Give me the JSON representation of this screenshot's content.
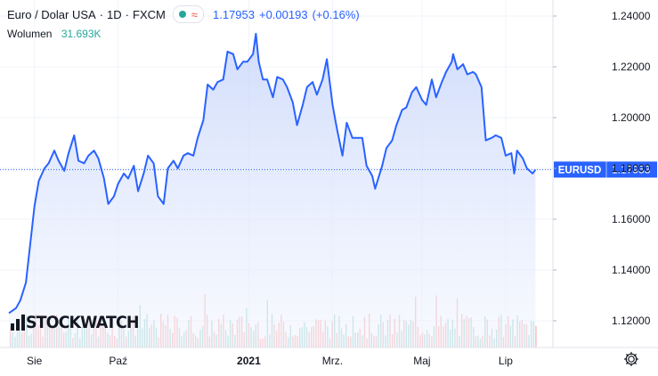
{
  "legend": {
    "symbol": "Euro / Dolar USA",
    "interval": "1D",
    "exchange": "FXCM",
    "price": "1.17953",
    "change": "+0.00193",
    "change_pct": "(+0.16%)",
    "volume_label": "Wolumen",
    "volume_value": "31.693K"
  },
  "price_tag": {
    "symbol": "EURUSD",
    "value": "1.17953"
  },
  "watermark": "STOCKWATCH",
  "colors": {
    "line": "#2962ff",
    "area_top": "#c9d7fb",
    "area_bottom": "#f2f5fe",
    "up": "#26a69a",
    "down": "#ef5350",
    "text": "#131722"
  },
  "chart_data": {
    "type": "area",
    "ylim": [
      1.11,
      1.245
    ],
    "yticks": [
      "1.24000",
      "1.22000",
      "1.20000",
      "1.18000",
      "1.16000",
      "1.14000",
      "1.12000"
    ],
    "ytick_values": [
      1.24,
      1.22,
      1.2,
      1.18,
      1.16,
      1.14,
      1.12
    ],
    "xlim": [
      "2020-07-16",
      "2021-07-23"
    ],
    "xticks": [
      {
        "label": "Sie",
        "date": "2020-08-03"
      },
      {
        "label": "Paź",
        "date": "2020-10-01"
      },
      {
        "label": "2021",
        "date": "2021-01-01"
      },
      {
        "label": "Mrz.",
        "date": "2021-03-01"
      },
      {
        "label": "Maj",
        "date": "2021-05-03"
      },
      {
        "label": "Lip",
        "date": "2021-07-01"
      }
    ],
    "last_price": 1.17953,
    "series": [
      {
        "values": [
          [
            "2020-07-16",
            1.123
          ],
          [
            "2020-07-21",
            1.125
          ],
          [
            "2020-07-24",
            1.128
          ],
          [
            "2020-07-28",
            1.135
          ],
          [
            "2020-07-31",
            1.15
          ],
          [
            "2020-08-03",
            1.165
          ],
          [
            "2020-08-06",
            1.175
          ],
          [
            "2020-08-10",
            1.18
          ],
          [
            "2020-08-13",
            1.182
          ],
          [
            "2020-08-17",
            1.187
          ],
          [
            "2020-08-20",
            1.183
          ],
          [
            "2020-08-24",
            1.179
          ],
          [
            "2020-08-27",
            1.186
          ],
          [
            "2020-08-31",
            1.193
          ],
          [
            "2020-09-03",
            1.183
          ],
          [
            "2020-09-07",
            1.182
          ],
          [
            "2020-09-10",
            1.185
          ],
          [
            "2020-09-14",
            1.187
          ],
          [
            "2020-09-17",
            1.184
          ],
          [
            "2020-09-21",
            1.176
          ],
          [
            "2020-09-24",
            1.166
          ],
          [
            "2020-09-28",
            1.169
          ],
          [
            "2020-10-01",
            1.174
          ],
          [
            "2020-10-05",
            1.178
          ],
          [
            "2020-10-08",
            1.176
          ],
          [
            "2020-10-12",
            1.181
          ],
          [
            "2020-10-15",
            1.171
          ],
          [
            "2020-10-19",
            1.178
          ],
          [
            "2020-10-22",
            1.185
          ],
          [
            "2020-10-26",
            1.182
          ],
          [
            "2020-10-29",
            1.169
          ],
          [
            "2020-11-02",
            1.166
          ],
          [
            "2020-11-05",
            1.18
          ],
          [
            "2020-11-09",
            1.183
          ],
          [
            "2020-11-12",
            1.18
          ],
          [
            "2020-11-16",
            1.185
          ],
          [
            "2020-11-19",
            1.186
          ],
          [
            "2020-11-23",
            1.185
          ],
          [
            "2020-11-26",
            1.192
          ],
          [
            "2020-11-30",
            1.199
          ],
          [
            "2020-12-03",
            1.213
          ],
          [
            "2020-12-07",
            1.211
          ],
          [
            "2020-12-10",
            1.214
          ],
          [
            "2020-12-14",
            1.215
          ],
          [
            "2020-12-17",
            1.226
          ],
          [
            "2020-12-21",
            1.225
          ],
          [
            "2020-12-24",
            1.219
          ],
          [
            "2020-12-28",
            1.222
          ],
          [
            "2020-12-31",
            1.222
          ],
          [
            "2021-01-04",
            1.225
          ],
          [
            "2021-01-06",
            1.233
          ],
          [
            "2021-01-08",
            1.222
          ],
          [
            "2021-01-11",
            1.215
          ],
          [
            "2021-01-14",
            1.215
          ],
          [
            "2021-01-18",
            1.208
          ],
          [
            "2021-01-21",
            1.216
          ],
          [
            "2021-01-25",
            1.215
          ],
          [
            "2021-01-28",
            1.212
          ],
          [
            "2021-02-01",
            1.206
          ],
          [
            "2021-02-04",
            1.197
          ],
          [
            "2021-02-08",
            1.205
          ],
          [
            "2021-02-11",
            1.212
          ],
          [
            "2021-02-15",
            1.214
          ],
          [
            "2021-02-18",
            1.209
          ],
          [
            "2021-02-22",
            1.215
          ],
          [
            "2021-02-25",
            1.223
          ],
          [
            "2021-03-01",
            1.205
          ],
          [
            "2021-03-04",
            1.196
          ],
          [
            "2021-03-08",
            1.185
          ],
          [
            "2021-03-11",
            1.198
          ],
          [
            "2021-03-15",
            1.192
          ],
          [
            "2021-03-18",
            1.192
          ],
          [
            "2021-03-22",
            1.192
          ],
          [
            "2021-03-25",
            1.181
          ],
          [
            "2021-03-29",
            1.177
          ],
          [
            "2021-03-31",
            1.172
          ],
          [
            "2021-04-05",
            1.181
          ],
          [
            "2021-04-08",
            1.188
          ],
          [
            "2021-04-12",
            1.191
          ],
          [
            "2021-04-15",
            1.197
          ],
          [
            "2021-04-19",
            1.203
          ],
          [
            "2021-04-22",
            1.204
          ],
          [
            "2021-04-26",
            1.21
          ],
          [
            "2021-04-29",
            1.212
          ],
          [
            "2021-05-03",
            1.207
          ],
          [
            "2021-05-06",
            1.205
          ],
          [
            "2021-05-10",
            1.215
          ],
          [
            "2021-05-13",
            1.208
          ],
          [
            "2021-05-17",
            1.214
          ],
          [
            "2021-05-20",
            1.218
          ],
          [
            "2021-05-24",
            1.222
          ],
          [
            "2021-05-25",
            1.225
          ],
          [
            "2021-05-28",
            1.219
          ],
          [
            "2021-06-01",
            1.221
          ],
          [
            "2021-06-04",
            1.217
          ],
          [
            "2021-06-08",
            1.218
          ],
          [
            "2021-06-10",
            1.217
          ],
          [
            "2021-06-14",
            1.212
          ],
          [
            "2021-06-17",
            1.191
          ],
          [
            "2021-06-21",
            1.192
          ],
          [
            "2021-06-24",
            1.193
          ],
          [
            "2021-06-28",
            1.192
          ],
          [
            "2021-07-01",
            1.185
          ],
          [
            "2021-07-05",
            1.186
          ],
          [
            "2021-07-07",
            1.178
          ],
          [
            "2021-07-09",
            1.187
          ],
          [
            "2021-07-13",
            1.184
          ],
          [
            "2021-07-16",
            1.18
          ],
          [
            "2021-07-20",
            1.178
          ],
          [
            "2021-07-22",
            1.1795
          ]
        ]
      }
    ],
    "volume_note": "histogram"
  }
}
